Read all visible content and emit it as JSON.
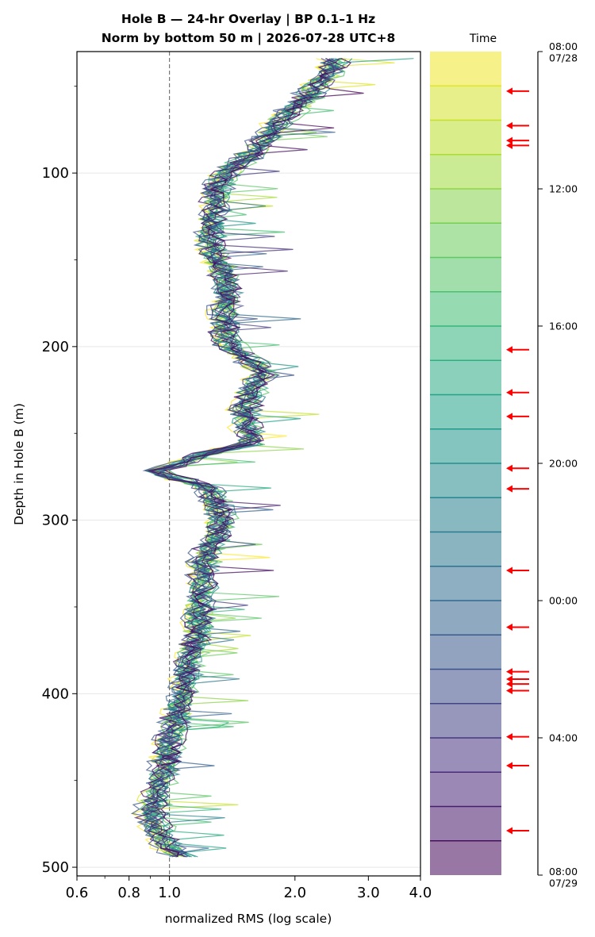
{
  "chart_data": {
    "type": "line",
    "title_line1": "Hole B — 24-hr Overlay  |  BP 0.1–1 Hz",
    "title_line2": "Norm by bottom 50 m  |  2026-07-28 UTC+8",
    "xlabel": "normalized RMS  (log scale)",
    "ylabel": "Depth in Hole B (m)",
    "x_scale": "log",
    "xlim": [
      0.6,
      4.0
    ],
    "ylim": [
      505,
      30
    ],
    "x_ticks": [
      "0.6",
      "0.8",
      "1.0",
      "2.0",
      "3.0",
      "4.0"
    ],
    "x_tick_values": [
      0.6,
      0.8,
      1.0,
      2.0,
      3.0,
      4.0
    ],
    "y_ticks": [
      "100",
      "200",
      "300",
      "400",
      "500"
    ],
    "y_tick_values": [
      100,
      200,
      300,
      400,
      500
    ],
    "reference_line_x": 1.0,
    "colormap": "viridis",
    "series_count": 24,
    "profile_depths": [
      34,
      40,
      50,
      60,
      70,
      80,
      90,
      100,
      110,
      120,
      130,
      140,
      150,
      160,
      170,
      180,
      190,
      200,
      210,
      216,
      220,
      230,
      240,
      250,
      256,
      262,
      268,
      272,
      276,
      282,
      290,
      300,
      310,
      320,
      330,
      340,
      350,
      360,
      370,
      380,
      390,
      400,
      410,
      420,
      430,
      440,
      450,
      460,
      470,
      480,
      490,
      496
    ],
    "profile_values": [
      2.5,
      2.45,
      2.25,
      2.05,
      1.85,
      1.7,
      1.55,
      1.35,
      1.3,
      1.28,
      1.26,
      1.25,
      1.3,
      1.35,
      1.38,
      1.36,
      1.34,
      1.4,
      1.6,
      1.68,
      1.6,
      1.55,
      1.5,
      1.55,
      1.55,
      1.2,
      1.05,
      0.92,
      1.05,
      1.25,
      1.3,
      1.33,
      1.3,
      1.22,
      1.2,
      1.2,
      1.18,
      1.17,
      1.16,
      1.12,
      1.1,
      1.08,
      1.05,
      1.02,
      1.0,
      0.98,
      0.96,
      0.92,
      0.9,
      0.95,
      1.0,
      1.1
    ],
    "colorbar": {
      "label": "Time",
      "ticks": [
        {
          "label": "08:00",
          "sub": "07/28",
          "frac": 0.0
        },
        {
          "label": "12:00",
          "sub": "",
          "frac": 0.1667
        },
        {
          "label": "16:00",
          "sub": "",
          "frac": 0.3333
        },
        {
          "label": "20:00",
          "sub": "",
          "frac": 0.5
        },
        {
          "label": "00:00",
          "sub": "",
          "frac": 0.6667
        },
        {
          "label": "04:00",
          "sub": "",
          "frac": 0.8333
        },
        {
          "label": "08:00",
          "sub": "07/29",
          "frac": 1.0
        }
      ],
      "bins": 24
    },
    "marked_times_frac": [
      0.048,
      0.09,
      0.108,
      0.114,
      0.362,
      0.414,
      0.443,
      0.506,
      0.531,
      0.63,
      0.699,
      0.753,
      0.762,
      0.768,
      0.776,
      0.832,
      0.867,
      0.946
    ],
    "marker_color": "#ff0000"
  }
}
